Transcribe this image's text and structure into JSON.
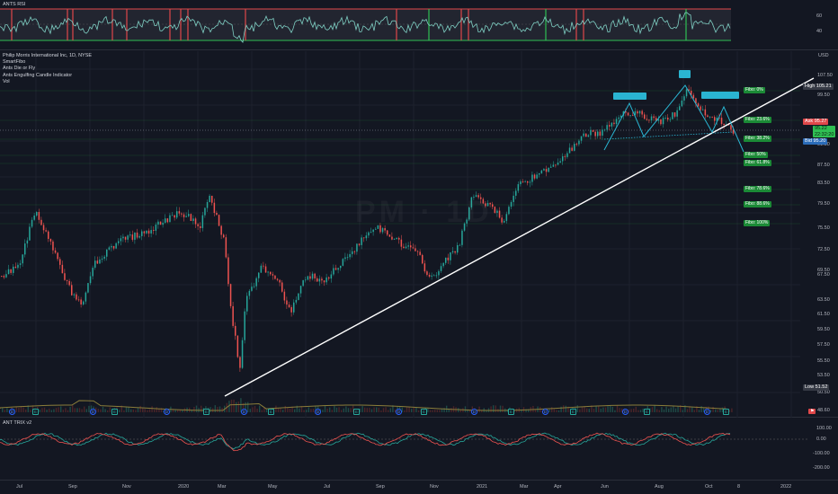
{
  "rsi": {
    "title": "ANTS RSI",
    "levels": [
      {
        "label": "60"
      },
      {
        "label": "40"
      }
    ],
    "colors": {
      "line": "#7fd0c4",
      "upper": "#e0484a",
      "lower": "#2fbf53",
      "band": "rgba(120,123,134,0.15)"
    }
  },
  "main": {
    "legend": [
      "Philip Morris International Inc, 1D, NYSE",
      "SmartFibo",
      "Ants Die or Fly",
      "Ants Engulfing Candle Indicator",
      "Vol"
    ],
    "watermark": "PM · 1D",
    "currency": "USD",
    "price_axis": [
      "107.50",
      "103.50",
      "99.50",
      "91.50",
      "87.50",
      "83.50",
      "79.50",
      "75.50",
      "72.50",
      "69.50",
      "67.50",
      "63.50",
      "61.50",
      "59.50",
      "57.50",
      "55.50",
      "53.50",
      "50.50",
      "48.60"
    ],
    "high": {
      "label": "High",
      "value": "105.21"
    },
    "ask": {
      "label": "Ask",
      "value": "95.27"
    },
    "last": {
      "value": "95.22",
      "countdown": "22:32:20"
    },
    "bid": {
      "label": "Bid",
      "value": "95.20"
    },
    "low": {
      "label": "Low",
      "value": "51.52"
    },
    "fibo": [
      {
        "label": "Fibo: 0%"
      },
      {
        "label": "Fibo: 23.6%"
      },
      {
        "label": "Fibo: 38.2%"
      },
      {
        "label": "Fibo: 50%"
      },
      {
        "label": "Fibo: 61.8%"
      },
      {
        "label": "Fibo: 78.6%"
      },
      {
        "label": "Fibo: 88.6%"
      },
      {
        "label": "Fibo: 100%"
      }
    ],
    "colors": {
      "up": "#26a69a",
      "down": "#ef5350",
      "trend": "#ffffff",
      "pattern": "#2ab5d1",
      "ask": "#e0484a",
      "bid": "#2a6bb8",
      "last": "#2fbf53"
    },
    "events": [
      "D",
      "E",
      "D",
      "E",
      "D",
      "E",
      "D",
      "E",
      "D",
      "E",
      "D",
      "E",
      "D",
      "E",
      "D",
      "E",
      "D",
      "E",
      "D",
      "E"
    ]
  },
  "trix": {
    "title": "ANT TRIX v2",
    "levels": [
      {
        "label": "100.00"
      },
      {
        "label": "0.00"
      },
      {
        "label": "-100.00"
      },
      {
        "label": "-200.00"
      }
    ],
    "colors": {
      "a": "#26a69a",
      "b": "#ef5350"
    }
  },
  "time_axis": [
    "Jul",
    "Sep",
    "Nov",
    "2020",
    "Mar",
    "May",
    "Jul",
    "Sep",
    "Nov",
    "2021",
    "Mar",
    "Apr",
    "Jun",
    "Aug",
    "Oct",
    "8",
    "2022"
  ]
}
